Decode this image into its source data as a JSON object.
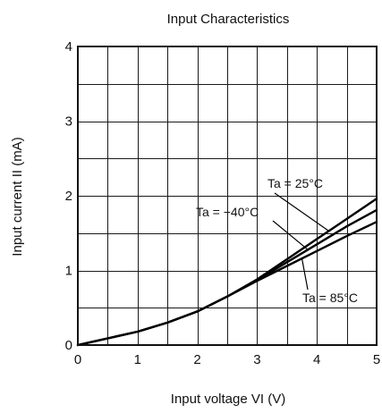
{
  "chart_data": {
    "type": "line",
    "title": "Input Characteristics",
    "xlabel": "Input voltage  VI (V)",
    "ylabel": "Input current  II (mA)",
    "xlim": [
      0,
      5
    ],
    "ylim": [
      0,
      4
    ],
    "x_ticks": [
      "0",
      "1",
      "2",
      "3",
      "4",
      "5"
    ],
    "y_ticks": [
      "0",
      "1",
      "2",
      "3",
      "4"
    ],
    "grid": true,
    "series": [
      {
        "name": "Ta = 25°C",
        "x": [
          0,
          0.5,
          1,
          1.5,
          2,
          2.5,
          3,
          3.5,
          4,
          4.5,
          5
        ],
        "y": [
          0,
          0.09,
          0.18,
          0.3,
          0.45,
          0.65,
          0.88,
          1.15,
          1.42,
          1.69,
          1.96
        ]
      },
      {
        "name": "Ta = −40°C",
        "x": [
          0,
          0.5,
          1,
          1.5,
          2,
          2.5,
          3,
          3.5,
          4,
          4.5,
          5
        ],
        "y": [
          0,
          0.09,
          0.18,
          0.3,
          0.45,
          0.65,
          0.87,
          1.11,
          1.35,
          1.59,
          1.81
        ]
      },
      {
        "name": "Ta = 85°C",
        "x": [
          0,
          0.5,
          1,
          1.5,
          2,
          2.5,
          3,
          3.5,
          4,
          4.5,
          5
        ],
        "y": [
          0,
          0.09,
          0.18,
          0.3,
          0.45,
          0.65,
          0.86,
          1.06,
          1.26,
          1.46,
          1.65
        ]
      }
    ],
    "annotations": [
      {
        "label": "Ta = 25°C",
        "series": 0,
        "at_x": 4.2
      },
      {
        "label": "Ta = −40°C",
        "series": 1,
        "at_x": 3.85
      },
      {
        "label": "Ta = 85°C",
        "series": 2,
        "at_x": 3.75
      }
    ]
  }
}
